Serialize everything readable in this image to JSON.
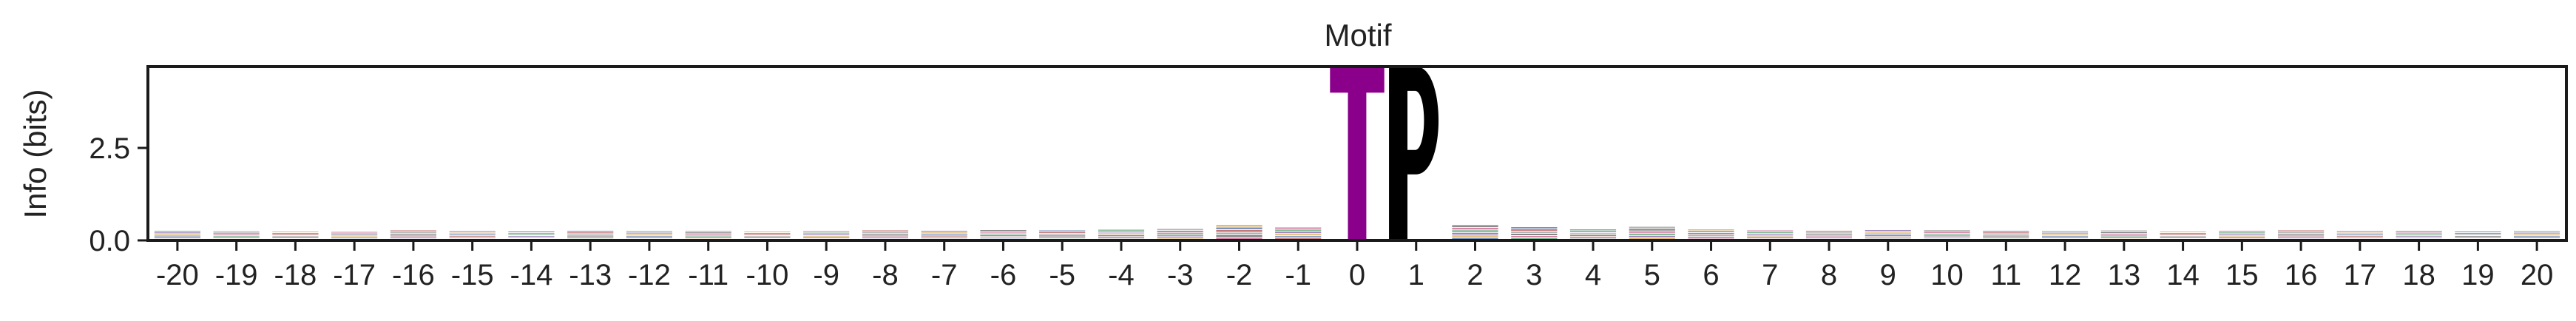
{
  "chart_data": {
    "type": "sequence-logo",
    "title": "Motif",
    "ylabel": "Info (bits)",
    "xlabel": "",
    "ylim": [
      0,
      4.7
    ],
    "yticks": [
      0.0,
      2.5
    ],
    "ytick_labels": [
      "0.0",
      "2.5"
    ],
    "positions": [
      -20,
      -19,
      -18,
      -17,
      -16,
      -15,
      -14,
      -13,
      -12,
      -11,
      -10,
      -9,
      -8,
      -7,
      -6,
      -5,
      -4,
      -3,
      -2,
      -1,
      0,
      1,
      2,
      3,
      4,
      5,
      6,
      7,
      8,
      9,
      10,
      11,
      12,
      13,
      14,
      15,
      16,
      17,
      18,
      19,
      20
    ],
    "background_info_bits": [
      0.26,
      0.25,
      0.24,
      0.23,
      0.27,
      0.25,
      0.24,
      0.26,
      0.25,
      0.26,
      0.24,
      0.25,
      0.27,
      0.26,
      0.28,
      0.27,
      0.29,
      0.31,
      0.42,
      0.35,
      0,
      0,
      0.41,
      0.36,
      0.3,
      0.37,
      0.3,
      0.27,
      0.26,
      0.28,
      0.27,
      0.26,
      0.25,
      0.27,
      0.24,
      0.26,
      0.27,
      0.25,
      0.25,
      0.24,
      0.25
    ],
    "letter_palette": [
      "#9a9a9a",
      "#b04848",
      "#4a6fa5",
      "#d9a441",
      "#7d5ba6",
      "#4f9d69",
      "#c85a8a",
      "#5b5b5b"
    ],
    "dominant_letters": [
      {
        "position": 0,
        "letter": "T",
        "info_bits": 4.7,
        "color": "#8b008b"
      },
      {
        "position": 1,
        "letter": "P",
        "info_bits": 4.7,
        "color": "#000000"
      }
    ]
  }
}
